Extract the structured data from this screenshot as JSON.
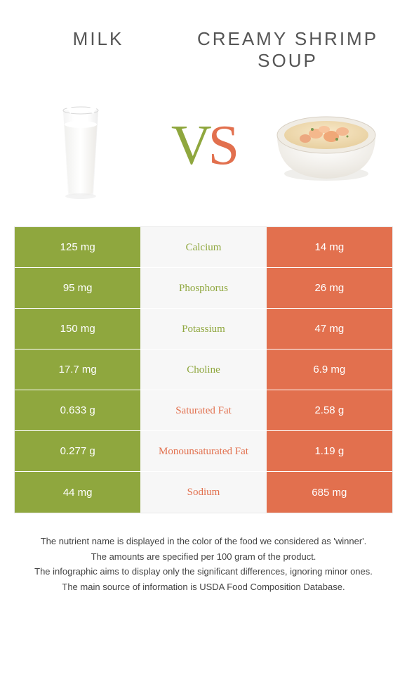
{
  "left_title": "Milk",
  "right_title": "Creamy Shrimp Soup",
  "vs_v": "V",
  "vs_s": "S",
  "colors": {
    "left_bg": "#8fa73e",
    "right_bg": "#e2704e",
    "mid_bg": "#f7f7f7",
    "left_text": "#8fa73e",
    "right_text": "#e2704e"
  },
  "rows": [
    {
      "left": "125 mg",
      "label": "Calcium",
      "right": "14 mg",
      "winner": "left"
    },
    {
      "left": "95 mg",
      "label": "Phosphorus",
      "right": "26 mg",
      "winner": "left"
    },
    {
      "left": "150 mg",
      "label": "Potassium",
      "right": "47 mg",
      "winner": "left"
    },
    {
      "left": "17.7 mg",
      "label": "Choline",
      "right": "6.9 mg",
      "winner": "left"
    },
    {
      "left": "0.633 g",
      "label": "Saturated Fat",
      "right": "2.58 g",
      "winner": "right"
    },
    {
      "left": "0.277 g",
      "label": "Monounsaturated Fat",
      "right": "1.19 g",
      "winner": "right"
    },
    {
      "left": "44 mg",
      "label": "Sodium",
      "right": "685 mg",
      "winner": "right"
    }
  ],
  "footer": [
    "The nutrient name is displayed in the color of the food we considered as 'winner'.",
    "The amounts are specified per 100 gram of the product.",
    "The infographic aims to display only the significant differences, ignoring minor ones.",
    "The main source of information is USDA Food Composition Database."
  ]
}
